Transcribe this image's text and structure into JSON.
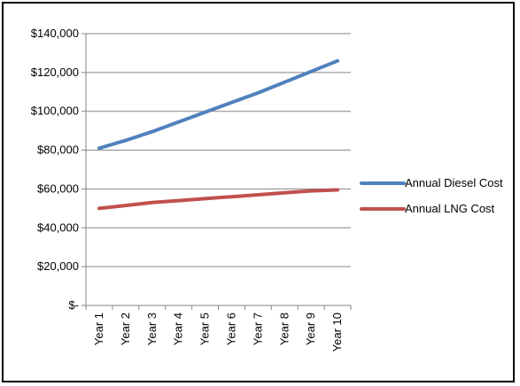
{
  "chart_data": {
    "type": "line",
    "title": "",
    "xlabel": "",
    "ylabel": "",
    "categories": [
      "Year 1",
      "Year 2",
      "Year 3",
      "Year 4",
      "Year 5",
      "Year 6",
      "Year 7",
      "Year 8",
      "Year 9",
      "Year 10"
    ],
    "ylim": [
      0,
      140000
    ],
    "y_tick_labels": [
      "$-",
      "$20,000",
      "$40,000",
      "$60,000",
      "$80,000",
      "$100,000",
      "$120,000",
      "$140,000"
    ],
    "grid": true,
    "legend_position": "right",
    "series": [
      {
        "name": "Annual Diesel Cost",
        "color": "#4f81bd",
        "values": [
          81000,
          85000,
          89500,
          94500,
          99500,
          104500,
          109500,
          115000,
          120500,
          126000
        ]
      },
      {
        "name": "Annual LNG Cost",
        "color": "#c0504d",
        "values": [
          50000,
          51500,
          53000,
          54000,
          55000,
          56000,
          57000,
          58000,
          59000,
          59500
        ]
      }
    ]
  }
}
